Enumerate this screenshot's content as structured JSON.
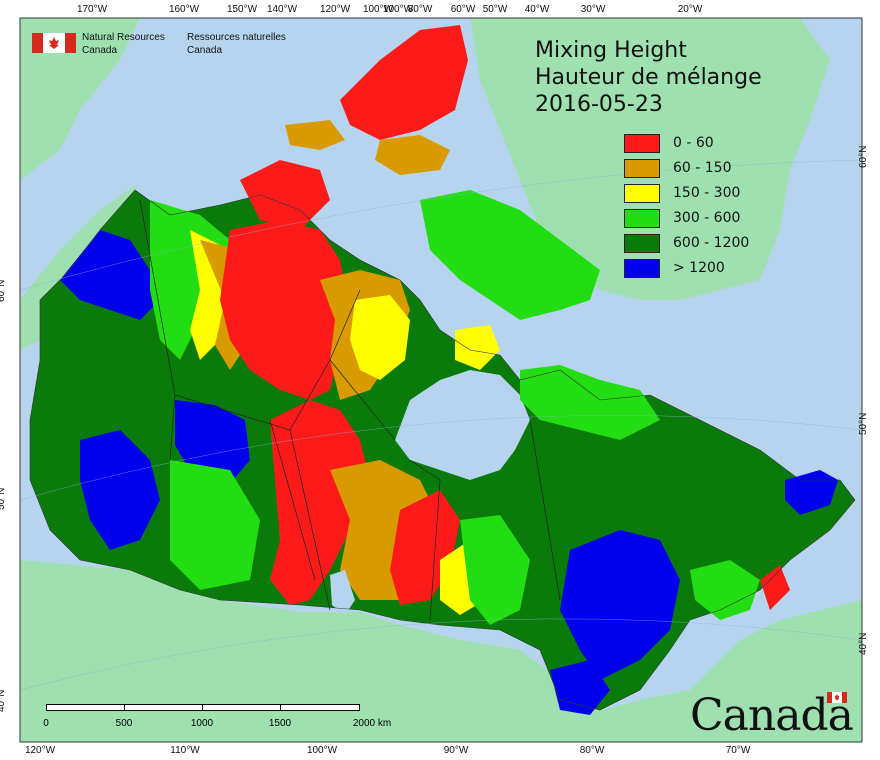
{
  "map": {
    "title_lines": [
      "Mixing Height",
      "Hauteur de mélange",
      "2016-05-23"
    ],
    "agency": {
      "en_line1": "Natural Resources",
      "en_line2": "Canada",
      "fr_line1": "Ressources naturelles",
      "fr_line2": "Canada"
    },
    "wordmark": "Canada",
    "legend": [
      {
        "label": "0 - 60",
        "color": "#ff1a1a"
      },
      {
        "label": "60 - 150",
        "color": "#d99a00"
      },
      {
        "label": "150 - 300",
        "color": "#ffff00"
      },
      {
        "label": "300 - 600",
        "color": "#22dd11"
      },
      {
        "label": "600 - 1200",
        "color": "#0a7a0a"
      },
      {
        "label": "> 1200",
        "color": "#0000ee"
      }
    ],
    "colors": {
      "ocean": "#b7d4ef",
      "land_outside": "#9fe0b0",
      "lakes": "#b7d4ef",
      "flag_red": "#d52b1e"
    },
    "graticule_top": [
      "170°W",
      "160°W",
      "150°W",
      "140°W",
      "120°W",
      "100°W",
      "100°W",
      "80°W",
      "60°W",
      "50°W",
      "40°W",
      "30°W",
      "20°W"
    ],
    "graticule_bottom": [
      "120°W",
      "110°W",
      "100°W",
      "90°W",
      "80°W",
      "70°W"
    ],
    "graticule_left": [
      "60°N",
      "50°N",
      "40°N"
    ],
    "graticule_right": [
      "60°N",
      "50°N",
      "40°N"
    ],
    "scale": {
      "ticks": [
        "0",
        "500",
        "1000",
        "1500",
        "2000 km"
      ]
    }
  }
}
